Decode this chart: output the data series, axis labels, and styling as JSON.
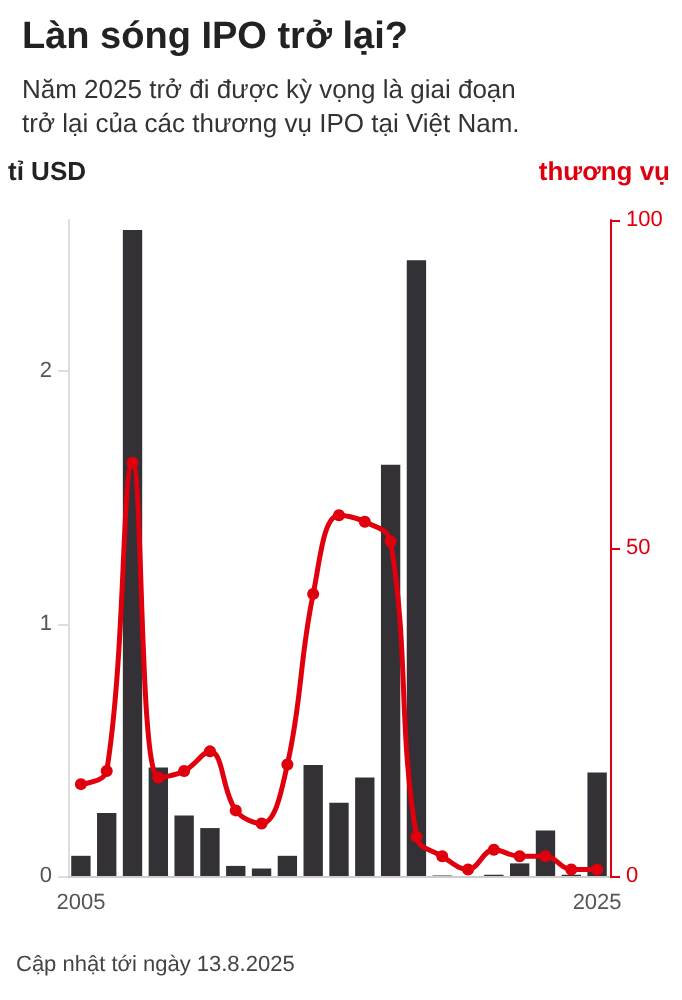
{
  "chart_data": {
    "type": "bar",
    "title": "Làn sóng IPO trở lại?",
    "subtitle": "Năm 2025 trở đi được kỳ vọng là giai đoạn trở lại của các thương vụ IPO tại Việt Nam.",
    "ylabel": "tỉ USD",
    "y2label": "thương vụ",
    "categories": [
      "2005",
      null,
      null,
      null,
      null,
      null,
      null,
      null,
      null,
      null,
      null,
      null,
      null,
      null,
      null,
      null,
      null,
      null,
      null,
      null,
      "2025"
    ],
    "series": [
      {
        "name": null,
        "color": "#333036",
        "values": [
          0.08,
          0.25,
          2.56,
          0.43,
          0.24,
          0.19,
          0.04,
          0.03,
          0.08,
          0.44,
          0.29,
          0.39,
          1.63,
          2.44,
          0.002,
          null,
          0.005,
          0.05,
          0.18,
          0.005,
          0.41
        ]
      },
      {
        "name": null,
        "type": "line",
        "axis": "y2",
        "color": "#e0000d",
        "marker": "circle",
        "values": [
          14,
          16,
          63,
          15,
          16,
          19,
          10,
          8,
          17,
          43,
          55,
          54,
          51,
          6,
          3,
          1,
          4,
          3,
          3,
          1,
          1
        ]
      }
    ],
    "ylim": [
      0,
      2.6
    ],
    "yticks": [
      0,
      1,
      2
    ],
    "y2lim": [
      0,
      100
    ],
    "y2ticks": [
      0,
      50,
      100
    ],
    "grid": false,
    "annotations": [
      "Cập nhật tới ngày 13.8.2025"
    ]
  }
}
